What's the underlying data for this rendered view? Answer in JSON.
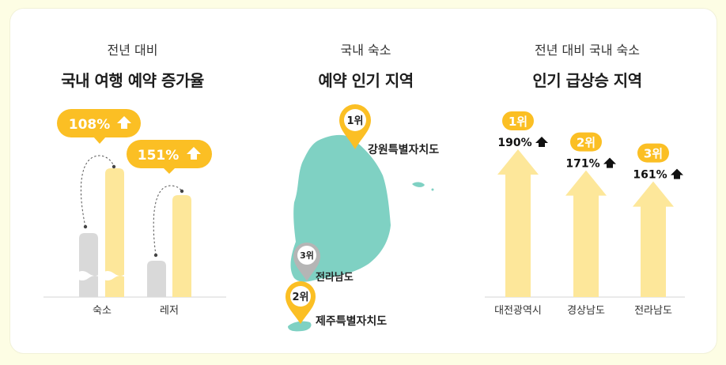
{
  "colors": {
    "accent": "#fbbf24",
    "bar_light": "#fde79a",
    "bar_gray": "#d9d9d9",
    "map_teal": "#7fd1c3",
    "pin_gray": "#b5b5b5"
  },
  "panels": {
    "left": {
      "subtitle": "전년 대비",
      "title": "국내 여행 예약 증가율"
    },
    "middle": {
      "subtitle": "국내 숙소",
      "title": "예약 인기 지역"
    },
    "right": {
      "subtitle": "전년 대비 국내 숙소",
      "title": "인기 급상승 지역"
    }
  },
  "chart_data": [
    {
      "type": "bar",
      "categories": [
        "숙소",
        "레저"
      ],
      "series": [
        {
          "values": [
            null,
            null
          ]
        },
        {
          "values": [
            108,
            151
          ]
        }
      ],
      "data_labels": [
        "108%",
        "151%"
      ],
      "trend_icon": "arrow-up-icon",
      "broken_axis": true
    },
    {
      "type": "map",
      "pins": [
        {
          "rank": "1위",
          "region": "강원특별자치도",
          "pin_color": "#fbbf24"
        },
        {
          "rank": "2위",
          "region": "제주특별자치도",
          "pin_color": "#fbbf24"
        },
        {
          "rank": "3위",
          "region": "전라남도",
          "pin_color": "#b5b5b5"
        }
      ]
    },
    {
      "type": "bar",
      "style": "arrow",
      "categories": [
        "대전광역시",
        "경상남도",
        "전라남도"
      ],
      "values": [
        190,
        171,
        161
      ],
      "data_labels": [
        "190%",
        "171%",
        "161%"
      ],
      "ranks": [
        "1위",
        "2위",
        "3위"
      ],
      "trend_icon": "arrow-up-icon"
    }
  ]
}
